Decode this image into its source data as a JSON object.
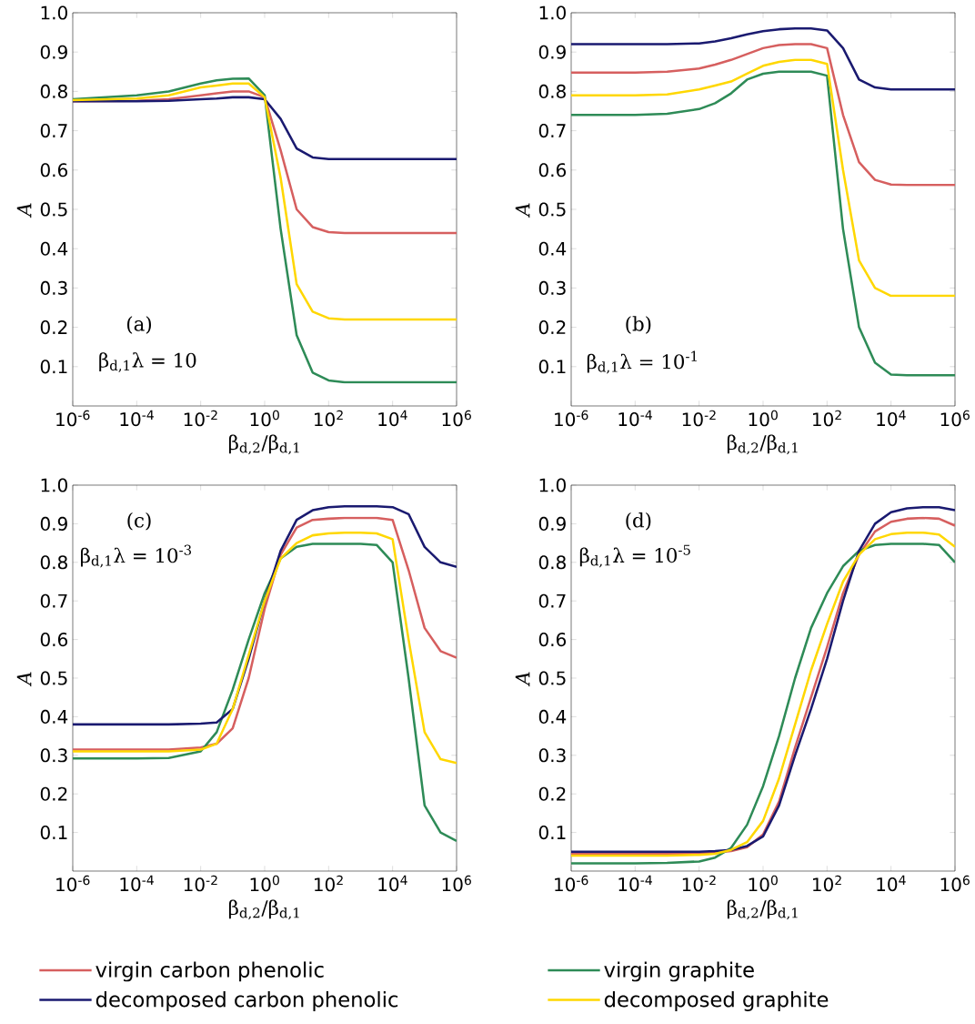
{
  "chart_data": [
    {
      "type": "line",
      "xlabel": "β$_{d,2}$/β$_{d,1}$",
      "ylabel": "A",
      "log": "x",
      "legend": "bottom",
      "xlim": [
        1e-06,
        1000000
      ],
      "ylim": [
        0,
        1
      ],
      "xticks": [
        {
          "value": 1e-06,
          "label": "10$^{-6}$"
        },
        {
          "value": 0.0001,
          "label": "10$^{-4}$"
        },
        {
          "value": 0.01,
          "label": "10$^{-2}$"
        },
        {
          "value": 1,
          "label": "10$^{0}$"
        },
        {
          "value": 100,
          "label": "10$^{2}$"
        },
        {
          "value": 10000,
          "label": "10$^{4}$"
        },
        {
          "value": 1000000,
          "label": "10$^{6}$"
        }
      ],
      "yticks": [
        {
          "value": 0.1,
          "label": "0.1"
        },
        {
          "value": 0.2,
          "label": "0.2"
        },
        {
          "value": 0.3,
          "label": "0.3"
        },
        {
          "value": 0.4,
          "label": "0.4"
        },
        {
          "value": 0.5,
          "label": "0.5"
        },
        {
          "value": 0.6,
          "label": "0.6"
        },
        {
          "value": 0.7,
          "label": "0.7"
        },
        {
          "value": 0.8,
          "label": "0.8"
        },
        {
          "value": 0.9,
          "label": "0.9"
        },
        {
          "value": 1.0,
          "label": "1.0"
        }
      ],
      "annotations": [
        "(a)",
        "β$_{d,1}$λ = 10"
      ],
      "x": [
        1e-06,
        0.0001,
        0.001,
        0.01,
        0.0316,
        0.1,
        0.316,
        1,
        3.16,
        10,
        31.6,
        100,
        316,
        1000,
        3160,
        10000,
        31600,
        100000,
        316000,
        1000000
      ],
      "series": [
        {
          "name": "virgin carbon phenolic",
          "color": "#d65f5f",
          "values": [
            0.775,
            0.776,
            0.78,
            0.79,
            0.795,
            0.8,
            0.8,
            0.785,
            0.65,
            0.5,
            0.455,
            0.442,
            0.44,
            0.44,
            0.44,
            0.44,
            0.44,
            0.44,
            0.44,
            0.44
          ]
        },
        {
          "name": "virgin graphite",
          "color": "#2e8b57",
          "values": [
            0.78,
            0.79,
            0.8,
            0.82,
            0.828,
            0.832,
            0.833,
            0.79,
            0.45,
            0.18,
            0.085,
            0.065,
            0.06,
            0.06,
            0.06,
            0.06,
            0.06,
            0.06,
            0.06,
            0.06
          ]
        },
        {
          "name": "decomposed carbon phenolic",
          "color": "#1a1a70",
          "values": [
            0.775,
            0.775,
            0.776,
            0.78,
            0.782,
            0.785,
            0.785,
            0.78,
            0.73,
            0.655,
            0.632,
            0.628,
            0.628,
            0.628,
            0.628,
            0.628,
            0.628,
            0.628,
            0.628,
            0.628
          ]
        },
        {
          "name": "decomposed graphite",
          "color": "#ffd700",
          "values": [
            0.778,
            0.782,
            0.79,
            0.81,
            0.815,
            0.82,
            0.82,
            0.785,
            0.58,
            0.31,
            0.24,
            0.223,
            0.22,
            0.22,
            0.22,
            0.22,
            0.22,
            0.22,
            0.22,
            0.22
          ]
        }
      ]
    },
    {
      "type": "line",
      "xlabel": "β$_{d,2}$/β$_{d,1}$",
      "ylabel": "A",
      "log": "x",
      "xlim": [
        1e-06,
        1000000
      ],
      "ylim": [
        0,
        1
      ],
      "xticks": [
        {
          "value": 1e-06,
          "label": "10$^{-6}$"
        },
        {
          "value": 0.0001,
          "label": "10$^{-4}$"
        },
        {
          "value": 0.01,
          "label": "10$^{-2}$"
        },
        {
          "value": 1,
          "label": "10$^{0}$"
        },
        {
          "value": 100,
          "label": "10$^{2}$"
        },
        {
          "value": 10000,
          "label": "10$^{4}$"
        },
        {
          "value": 1000000,
          "label": "10$^{6}$"
        }
      ],
      "yticks": [
        {
          "value": 0.1,
          "label": "0.1"
        },
        {
          "value": 0.2,
          "label": "0.2"
        },
        {
          "value": 0.3,
          "label": "0.3"
        },
        {
          "value": 0.4,
          "label": "0.4"
        },
        {
          "value": 0.5,
          "label": "0.5"
        },
        {
          "value": 0.6,
          "label": "0.6"
        },
        {
          "value": 0.7,
          "label": "0.7"
        },
        {
          "value": 0.8,
          "label": "0.8"
        },
        {
          "value": 0.9,
          "label": "0.9"
        },
        {
          "value": 1.0,
          "label": "1.0"
        }
      ],
      "annotations": [
        "(b)",
        "β$_{d,1}$λ = 10$^{-1}$"
      ],
      "x": [
        1e-06,
        0.0001,
        0.001,
        0.01,
        0.0316,
        0.1,
        0.316,
        1,
        3.16,
        10,
        31.6,
        100,
        316,
        1000,
        3160,
        10000,
        31600,
        100000,
        316000,
        1000000
      ],
      "series": [
        {
          "color": "#d65f5f",
          "values": [
            0.848,
            0.848,
            0.85,
            0.858,
            0.868,
            0.88,
            0.895,
            0.91,
            0.918,
            0.92,
            0.92,
            0.91,
            0.74,
            0.62,
            0.575,
            0.563,
            0.562,
            0.562,
            0.562,
            0.562
          ]
        },
        {
          "color": "#2e8b57",
          "values": [
            0.74,
            0.74,
            0.743,
            0.755,
            0.77,
            0.795,
            0.83,
            0.845,
            0.85,
            0.85,
            0.85,
            0.84,
            0.45,
            0.2,
            0.11,
            0.08,
            0.078,
            0.078,
            0.078,
            0.078
          ]
        },
        {
          "color": "#1a1a70",
          "values": [
            0.92,
            0.92,
            0.92,
            0.922,
            0.927,
            0.935,
            0.945,
            0.953,
            0.958,
            0.96,
            0.96,
            0.955,
            0.91,
            0.83,
            0.81,
            0.805,
            0.805,
            0.805,
            0.805,
            0.805
          ]
        },
        {
          "color": "#ffd700",
          "values": [
            0.79,
            0.79,
            0.792,
            0.805,
            0.815,
            0.825,
            0.845,
            0.865,
            0.875,
            0.88,
            0.88,
            0.87,
            0.6,
            0.37,
            0.3,
            0.28,
            0.28,
            0.28,
            0.28,
            0.28
          ]
        }
      ]
    },
    {
      "type": "line",
      "xlabel": "β$_{d,2}$/β$_{d,1}$",
      "ylabel": "A",
      "log": "x",
      "xlim": [
        1e-06,
        1000000
      ],
      "ylim": [
        0,
        1
      ],
      "xticks": [
        {
          "value": 1e-06,
          "label": "10$^{-6}$"
        },
        {
          "value": 0.0001,
          "label": "10$^{-4}$"
        },
        {
          "value": 0.01,
          "label": "10$^{-2}$"
        },
        {
          "value": 1,
          "label": "10$^{0}$"
        },
        {
          "value": 100,
          "label": "10$^{2}$"
        },
        {
          "value": 10000,
          "label": "10$^{4}$"
        },
        {
          "value": 1000000,
          "label": "10$^{6}$"
        }
      ],
      "yticks": [
        {
          "value": 0.1,
          "label": "0.1"
        },
        {
          "value": 0.2,
          "label": "0.2"
        },
        {
          "value": 0.3,
          "label": "0.3"
        },
        {
          "value": 0.4,
          "label": "0.4"
        },
        {
          "value": 0.5,
          "label": "0.5"
        },
        {
          "value": 0.6,
          "label": "0.6"
        },
        {
          "value": 0.7,
          "label": "0.7"
        },
        {
          "value": 0.8,
          "label": "0.8"
        },
        {
          "value": 0.9,
          "label": "0.9"
        },
        {
          "value": 1.0,
          "label": "1.0"
        }
      ],
      "annotations": [
        "(c)",
        "β$_{d,1}$λ = 10$^{-3}$"
      ],
      "x": [
        1e-06,
        0.0001,
        0.001,
        0.01,
        0.0316,
        0.1,
        0.316,
        1,
        3.16,
        10,
        31.6,
        100,
        316,
        1000,
        3160,
        10000,
        31600,
        100000,
        316000,
        1000000
      ],
      "series": [
        {
          "color": "#d65f5f",
          "values": [
            0.315,
            0.315,
            0.315,
            0.32,
            0.33,
            0.37,
            0.5,
            0.68,
            0.82,
            0.89,
            0.91,
            0.913,
            0.915,
            0.915,
            0.915,
            0.91,
            0.78,
            0.63,
            0.57,
            0.553
          ]
        },
        {
          "color": "#2e8b57",
          "values": [
            0.292,
            0.292,
            0.293,
            0.31,
            0.36,
            0.47,
            0.6,
            0.72,
            0.81,
            0.84,
            0.848,
            0.848,
            0.848,
            0.848,
            0.845,
            0.8,
            0.5,
            0.17,
            0.1,
            0.078
          ]
        },
        {
          "color": "#1a1a70",
          "values": [
            0.38,
            0.38,
            0.38,
            0.382,
            0.385,
            0.42,
            0.55,
            0.7,
            0.83,
            0.91,
            0.935,
            0.943,
            0.945,
            0.945,
            0.945,
            0.943,
            0.925,
            0.84,
            0.8,
            0.788
          ]
        },
        {
          "color": "#ffd700",
          "values": [
            0.31,
            0.31,
            0.31,
            0.315,
            0.33,
            0.42,
            0.56,
            0.7,
            0.81,
            0.85,
            0.87,
            0.875,
            0.877,
            0.877,
            0.875,
            0.86,
            0.6,
            0.36,
            0.29,
            0.28
          ]
        }
      ]
    },
    {
      "type": "line",
      "xlabel": "β$_{d,2}$/β$_{d,1}$",
      "ylabel": "A",
      "log": "x",
      "xlim": [
        1e-06,
        1000000
      ],
      "ylim": [
        0,
        1
      ],
      "xticks": [
        {
          "value": 1e-06,
          "label": "10$^{-6}$"
        },
        {
          "value": 0.0001,
          "label": "10$^{-4}$"
        },
        {
          "value": 0.01,
          "label": "10$^{-2}$"
        },
        {
          "value": 1,
          "label": "10$^{0}$"
        },
        {
          "value": 100,
          "label": "10$^{2}$"
        },
        {
          "value": 10000,
          "label": "10$^{4}$"
        },
        {
          "value": 1000000,
          "label": "10$^{6}$"
        }
      ],
      "yticks": [
        {
          "value": 0.1,
          "label": "0.1"
        },
        {
          "value": 0.2,
          "label": "0.2"
        },
        {
          "value": 0.3,
          "label": "0.3"
        },
        {
          "value": 0.4,
          "label": "0.4"
        },
        {
          "value": 0.5,
          "label": "0.5"
        },
        {
          "value": 0.6,
          "label": "0.6"
        },
        {
          "value": 0.7,
          "label": "0.7"
        },
        {
          "value": 0.8,
          "label": "0.8"
        },
        {
          "value": 0.9,
          "label": "0.9"
        },
        {
          "value": 1.0,
          "label": "1.0"
        }
      ],
      "annotations": [
        "(d)",
        "β$_{d,1}$λ = 10$^{-5}$"
      ],
      "x": [
        1e-06,
        0.0001,
        0.001,
        0.01,
        0.0316,
        0.1,
        0.316,
        1,
        3.16,
        10,
        31.6,
        100,
        316,
        1000,
        3160,
        10000,
        31600,
        100000,
        316000,
        1000000
      ],
      "series": [
        {
          "color": "#d65f5f",
          "values": [
            0.045,
            0.045,
            0.045,
            0.046,
            0.048,
            0.052,
            0.062,
            0.095,
            0.18,
            0.32,
            0.45,
            0.58,
            0.72,
            0.82,
            0.88,
            0.905,
            0.913,
            0.915,
            0.913,
            0.895
          ]
        },
        {
          "color": "#2e8b57",
          "values": [
            0.02,
            0.02,
            0.021,
            0.025,
            0.035,
            0.06,
            0.12,
            0.22,
            0.35,
            0.5,
            0.63,
            0.72,
            0.79,
            0.83,
            0.845,
            0.848,
            0.848,
            0.848,
            0.845,
            0.8
          ]
        },
        {
          "color": "#1a1a70",
          "values": [
            0.05,
            0.05,
            0.05,
            0.05,
            0.052,
            0.055,
            0.065,
            0.09,
            0.17,
            0.3,
            0.42,
            0.55,
            0.7,
            0.83,
            0.9,
            0.93,
            0.94,
            0.943,
            0.943,
            0.935
          ]
        },
        {
          "color": "#ffd700",
          "values": [
            0.04,
            0.04,
            0.04,
            0.042,
            0.045,
            0.055,
            0.075,
            0.13,
            0.24,
            0.38,
            0.52,
            0.64,
            0.75,
            0.82,
            0.86,
            0.873,
            0.877,
            0.877,
            0.872,
            0.84
          ]
        }
      ]
    }
  ]
}
